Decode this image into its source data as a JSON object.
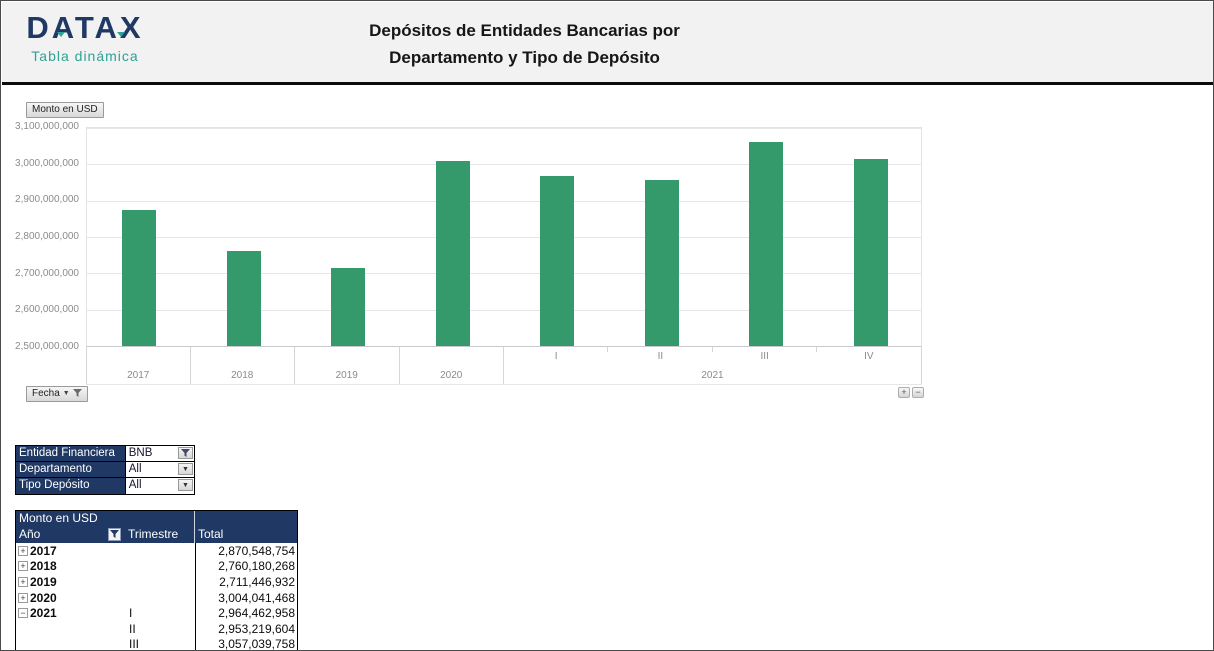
{
  "header": {
    "logo_title": "DATAX",
    "logo_subtitle": "Tabla dinámica",
    "title_line1": "Depósitos de Entidades Bancarias por",
    "title_line2": "Departamento y Tipo de Depósito"
  },
  "chart": {
    "value_field_button": "Monto en USD",
    "axis_field_button": "Fecha",
    "expand_button": "+",
    "collapse_button": "−"
  },
  "chart_data": {
    "type": "bar",
    "title": "Depósitos de Entidades Bancarias por Departamento y Tipo de Depósito",
    "value_field": "Monto en USD",
    "axis_field": "Fecha",
    "legend": "none",
    "grid": true,
    "ylim": [
      2500000000,
      3100000000
    ],
    "ytick_interval": 100000000,
    "ytick_labels": [
      "2,500,000,000",
      "2,600,000,000",
      "2,700,000,000",
      "2,800,000,000",
      "2,900,000,000",
      "3,000,000,000",
      "3,100,000,000"
    ],
    "bar_color": "#34996B",
    "x_groups": [
      {
        "year": "2017",
        "quarters": [
          ""
        ],
        "values": [
          2870548754
        ]
      },
      {
        "year": "2018",
        "quarters": [
          ""
        ],
        "values": [
          2760180268
        ]
      },
      {
        "year": "2019",
        "quarters": [
          ""
        ],
        "values": [
          2711446932
        ]
      },
      {
        "year": "2020",
        "quarters": [
          ""
        ],
        "values": [
          3004041468
        ]
      },
      {
        "year": "2021",
        "quarters": [
          "I",
          "II",
          "III",
          "IV"
        ],
        "values": [
          2964462958,
          2953219604,
          3057039758,
          3010000000
        ]
      }
    ]
  },
  "filters": {
    "rows": [
      {
        "label": "Entidad Financiera",
        "value": "BNB",
        "filtered": true
      },
      {
        "label": "Departamento",
        "value": "All",
        "filtered": false
      },
      {
        "label": "Tipo Depósito",
        "value": "All",
        "filtered": false
      }
    ]
  },
  "pivot_table": {
    "title": "Monto en USD",
    "columns": [
      "Año",
      "Trimestre",
      "Total"
    ],
    "rows": [
      {
        "expand": "+",
        "year": "2017",
        "trimestre": "",
        "total": "2,870,548,754"
      },
      {
        "expand": "+",
        "year": "2018",
        "trimestre": "",
        "total": "2,760,180,268"
      },
      {
        "expand": "+",
        "year": "2019",
        "trimestre": "",
        "total": "2,711,446,932"
      },
      {
        "expand": "+",
        "year": "2020",
        "trimestre": "",
        "total": "3,004,041,468"
      },
      {
        "expand": "−",
        "year": "2021",
        "trimestre": "I",
        "total": "2,964,462,958"
      },
      {
        "expand": "",
        "year": "",
        "trimestre": "II",
        "total": "2,953,219,604"
      },
      {
        "expand": "",
        "year": "",
        "trimestre": "III",
        "total": "3,057,039,758"
      }
    ]
  },
  "colors": {
    "bar_green": "#34996B",
    "header_navy": "#1F3864",
    "logo_navy": "#1F3864",
    "logo_teal": "#2EA296",
    "header_band_gray": "#F2F2F2"
  }
}
